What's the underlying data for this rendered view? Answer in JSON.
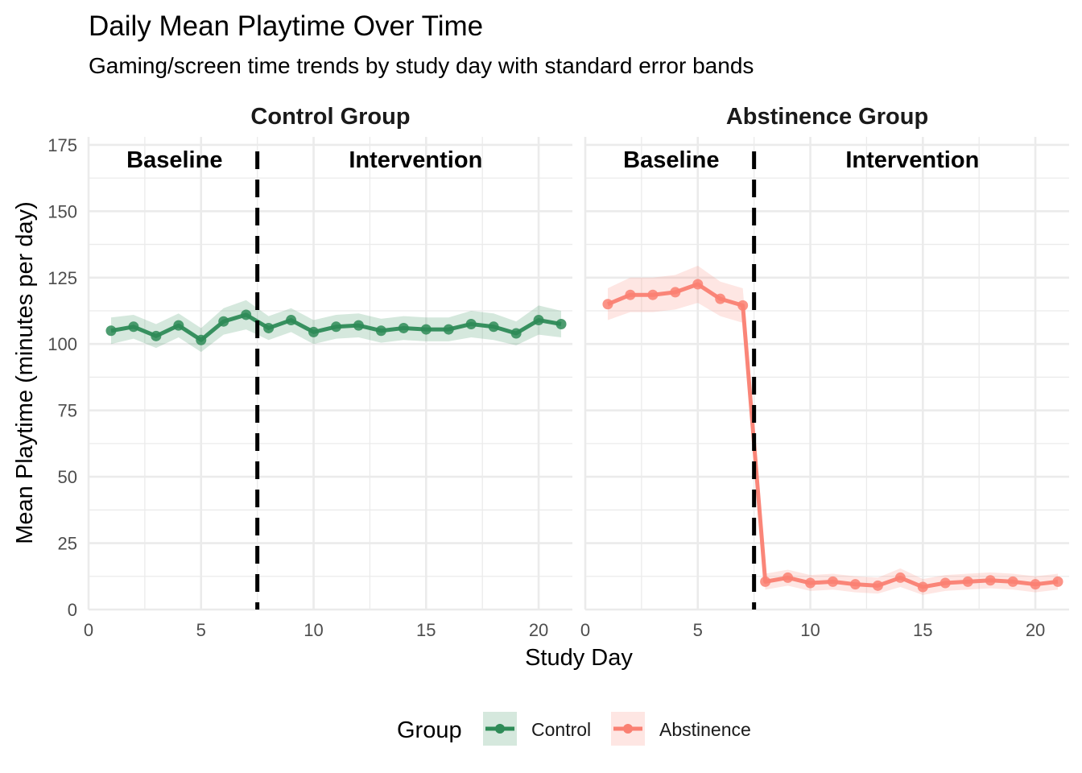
{
  "title": "Daily Mean Playtime Over Time",
  "subtitle": "Gaming/screen time trends by study day with standard error bands",
  "colors": {
    "control": "#2e8b57",
    "abstinence": "#fa8072",
    "grid": "#ebebeb",
    "divider": "#000000"
  },
  "chart_data": {
    "type": "line",
    "xlabel": "Study Day",
    "ylabel": "Mean Playtime (minutes per day)",
    "xlim": [
      0,
      21.5
    ],
    "ylim": [
      0,
      178
    ],
    "x_ticks": [
      0,
      5,
      10,
      15,
      20
    ],
    "y_ticks": [
      0,
      25,
      50,
      75,
      100,
      125,
      150,
      175
    ],
    "grid": true,
    "legend": {
      "title": "Group",
      "position": "bottom",
      "items": [
        {
          "label": "Control",
          "color": "#2e8b57"
        },
        {
          "label": "Abstinence",
          "color": "#fa8072"
        }
      ]
    },
    "phase_divider_day": 7.5,
    "phase_labels": [
      "Baseline",
      "Intervention"
    ],
    "facets": [
      {
        "label": "Control Group",
        "series_name": "Control",
        "color": "#2e8b57",
        "x": [
          1,
          2,
          3,
          4,
          5,
          6,
          7,
          8,
          9,
          10,
          11,
          12,
          13,
          14,
          15,
          16,
          17,
          18,
          19,
          20,
          21
        ],
        "y": [
          105,
          106.5,
          103,
          107,
          101.5,
          108.5,
          111,
          106,
          109,
          104.5,
          106.5,
          107,
          105,
          106,
          105.5,
          105.5,
          107.5,
          106.5,
          104,
          109,
          107.5
        ],
        "se": [
          5,
          4.5,
          4.5,
          4.5,
          4.5,
          5,
          5.5,
          4.5,
          4.5,
          4.5,
          4.5,
          4.5,
          4.5,
          4.5,
          4.5,
          4.5,
          5,
          5,
          4.5,
          5.5,
          5
        ]
      },
      {
        "label": "Abstinence Group",
        "series_name": "Abstinence",
        "color": "#fa8072",
        "x": [
          1,
          2,
          3,
          4,
          5,
          6,
          7,
          8,
          9,
          10,
          11,
          12,
          13,
          14,
          15,
          16,
          17,
          18,
          19,
          20,
          21
        ],
        "y": [
          115,
          118.5,
          118.5,
          119.5,
          122.5,
          117,
          114.5,
          10.5,
          12,
          10,
          10.5,
          9.5,
          9,
          12,
          8.5,
          10,
          10.5,
          11,
          10.5,
          9.5,
          10.5
        ],
        "se": [
          6,
          6.5,
          6.5,
          6.5,
          7,
          6.5,
          6.5,
          3,
          3,
          3,
          3,
          3,
          3,
          3.5,
          3,
          3,
          3,
          3,
          3,
          3,
          3
        ]
      }
    ]
  }
}
